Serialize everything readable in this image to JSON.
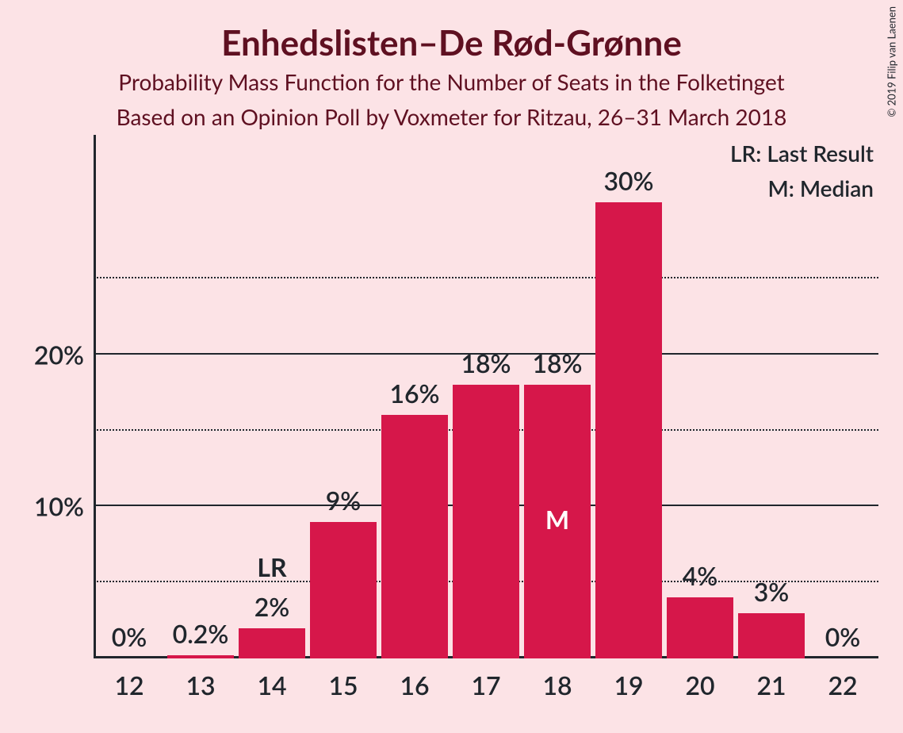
{
  "chart": {
    "type": "bar",
    "title": "Enhedslisten–De Rød-Grønne",
    "title_fontsize": 44,
    "subtitle1": "Probability Mass Function for the Number of Seats in the Folketinget",
    "subtitle2": "Based on an Opinion Poll by Voxmeter for Ritzau, 26–31 March 2018",
    "subtitle_fontsize": 28,
    "copyright": "© 2019 Filip van Laenen",
    "background_color": "#fce3e6",
    "bar_color": "#d6174a",
    "text_color": "#20262c",
    "title_color": "#5f1021",
    "grid_solid_color": "#20262c",
    "grid_dotted_color": "#20262c",
    "axis_color": "#20262c",
    "categories": [
      "12",
      "13",
      "14",
      "15",
      "16",
      "17",
      "18",
      "19",
      "20",
      "21",
      "22"
    ],
    "values": [
      0,
      0.2,
      2,
      9,
      16,
      18,
      18,
      30,
      4,
      3,
      0
    ],
    "value_labels": [
      "0%",
      "0.2%",
      "2%",
      "9%",
      "16%",
      "18%",
      "18%",
      "30%",
      "4%",
      "3%",
      "0%"
    ],
    "ymax": 30,
    "yaxis_ticks_major": [
      10,
      20
    ],
    "yaxis_ticks_minor": [
      5,
      15,
      25
    ],
    "yaxis_tick_labels": [
      "10%",
      "20%"
    ],
    "xaxis_fontsize": 32,
    "yaxis_fontsize": 32,
    "value_fontsize": 32,
    "bar_width_ratio": 0.94,
    "legend": {
      "lr": "LR: Last Result",
      "m": "M: Median",
      "fontsize": 28
    },
    "lr_index": 2,
    "lr_label": "LR",
    "median_index": 6,
    "median_label": "M"
  }
}
